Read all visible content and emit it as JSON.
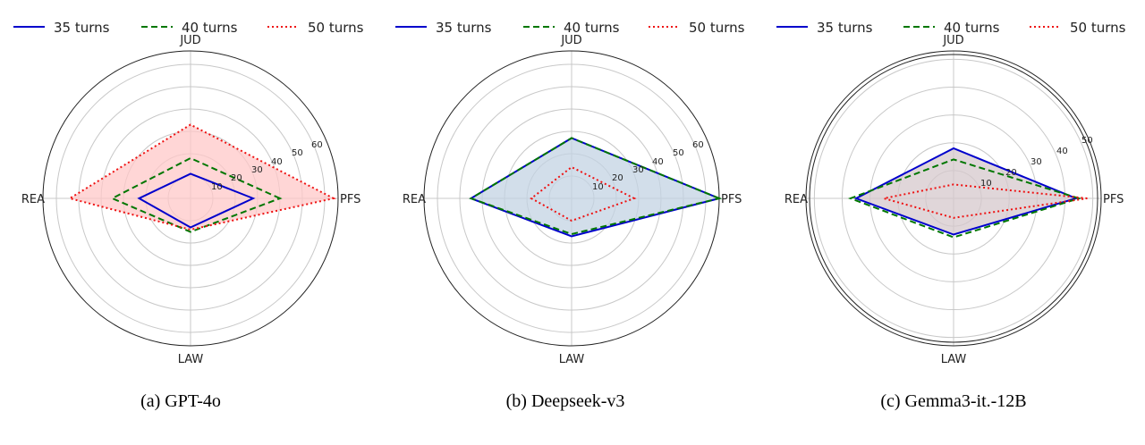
{
  "chart_data": [
    {
      "type": "radar",
      "caption": "(a) GPT-4o",
      "axes": [
        "PFS",
        "JUD",
        "REA",
        "LAW"
      ],
      "r_ticks": [
        "10",
        "20",
        "30",
        "40",
        "50",
        "60"
      ],
      "r_max": 66,
      "grid": true,
      "legend_position": "top",
      "series": [
        {
          "name": "35 turns",
          "color": "#0000cc",
          "style": "solid",
          "values": [
            28,
            11,
            23,
            13
          ]
        },
        {
          "name": "40 turns",
          "color": "#007700",
          "style": "dashed",
          "values": [
            40,
            18,
            35,
            15
          ]
        },
        {
          "name": "50 turns",
          "color": "#ee1111",
          "style": "dotted",
          "values": [
            64,
            33,
            54,
            14
          ]
        }
      ],
      "fill_color": "#ffc8c8"
    },
    {
      "type": "radar",
      "caption": "(b) Deepseek-v3",
      "axes": [
        "PFS",
        "JUD",
        "REA",
        "LAW"
      ],
      "r_ticks": [
        "10",
        "20",
        "30",
        "40",
        "50",
        "60"
      ],
      "r_max": 66,
      "grid": true,
      "legend_position": "top",
      "series": [
        {
          "name": "35 turns",
          "color": "#0000cc",
          "style": "solid",
          "values": [
            66,
            27,
            45,
            17
          ]
        },
        {
          "name": "40 turns",
          "color": "#007700",
          "style": "dashed",
          "values": [
            66,
            27,
            45,
            16
          ]
        },
        {
          "name": "50 turns",
          "color": "#ee1111",
          "style": "dotted",
          "values": [
            28,
            14,
            18,
            10
          ]
        }
      ],
      "fill_color": "#c3d3e3"
    },
    {
      "type": "radar",
      "caption": "(c) Gemma3-it.-12B",
      "axes": [
        "PFS",
        "JUD",
        "REA",
        "LAW"
      ],
      "r_ticks": [
        "10",
        "20",
        "30",
        "40",
        "50"
      ],
      "r_max": 53,
      "grid": true,
      "legend_position": "top",
      "series": [
        {
          "name": "35 turns",
          "color": "#0000cc",
          "style": "solid",
          "values": [
            44,
            18,
            35,
            13
          ]
        },
        {
          "name": "40 turns",
          "color": "#007700",
          "style": "dashed",
          "values": [
            45,
            14,
            37,
            14
          ]
        },
        {
          "name": "50 turns",
          "color": "#ee1111",
          "style": "dotted",
          "values": [
            48,
            5,
            25,
            7
          ]
        }
      ],
      "fill_color": "#d6c8cc"
    }
  ]
}
